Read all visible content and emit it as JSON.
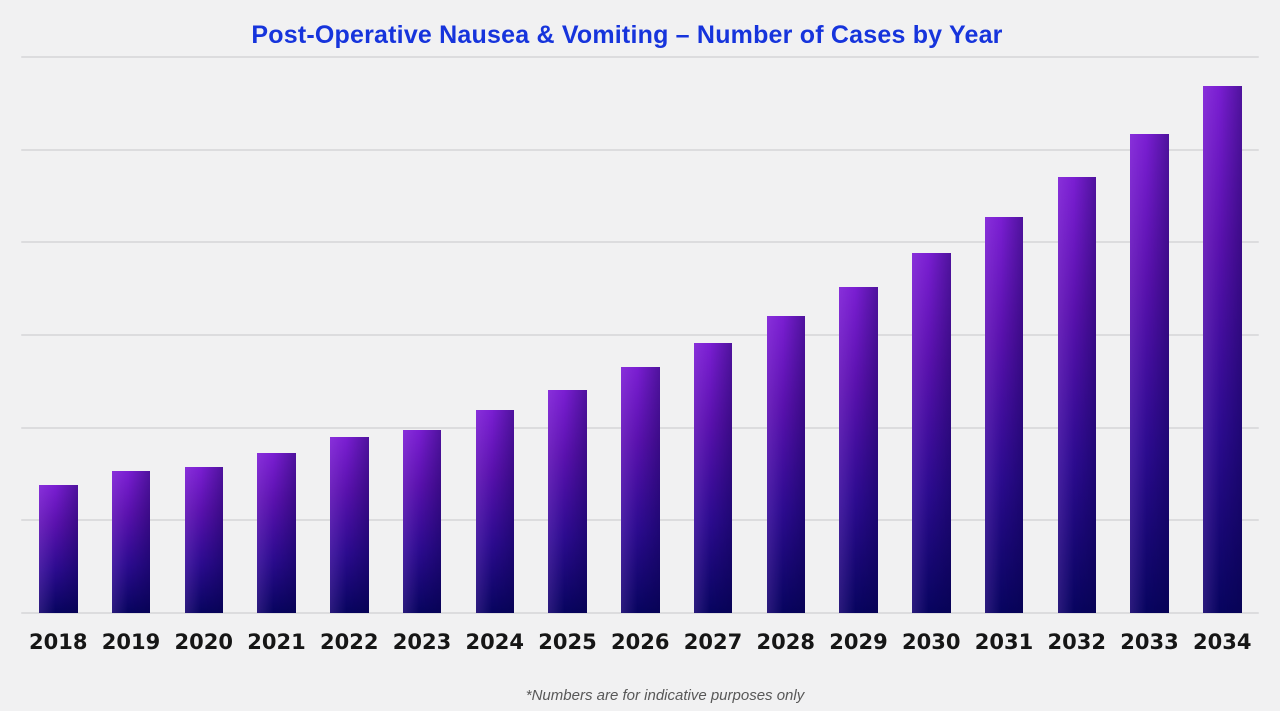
{
  "page": {
    "background_color": "#f1f1f2",
    "gridline_color": "#dcdcde",
    "title_color": "#1634dc",
    "tick_label_color": "#161616",
    "footnote_color": "#585858"
  },
  "chart_data": {
    "type": "bar",
    "title": "Post-Operative Nausea & Vomiting – Number of Cases by Year",
    "annotation": "*Numbers are for indicative purposes only",
    "xlabel": "",
    "ylabel": "",
    "categories": [
      "2018",
      "2019",
      "2020",
      "2021",
      "2022",
      "2023",
      "2024",
      "2025",
      "2026",
      "2027",
      "2028",
      "2029",
      "2030",
      "2031",
      "2032",
      "2033",
      "2034"
    ],
    "values": [
      138,
      153,
      158,
      173,
      190,
      198,
      219,
      241,
      265,
      291,
      320,
      352,
      388,
      427,
      470,
      517,
      569
    ],
    "ylim": [
      0,
      600
    ],
    "gridline_step": 100,
    "grid": "horizontal-only",
    "y_axis_tick_labels_visible": false,
    "legend_position": "none",
    "bar_gradient": [
      "#7a1ed2",
      "#5a11ae",
      "#2c0b8f",
      "#07045f"
    ]
  }
}
